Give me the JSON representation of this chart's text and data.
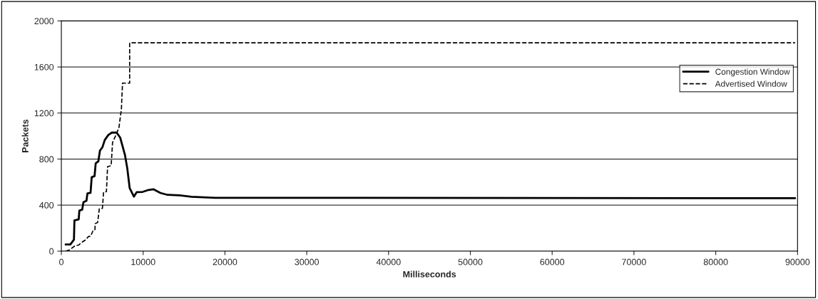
{
  "chart_data": {
    "type": "line",
    "xlabel": "Milliseconds",
    "ylabel": "Packets",
    "xlim": [
      0,
      90000
    ],
    "xticks": [
      0,
      10000,
      20000,
      30000,
      40000,
      50000,
      60000,
      70000,
      80000,
      90000
    ],
    "ylim": [
      0,
      2000
    ],
    "yticks": [
      0,
      400,
      800,
      1200,
      1600,
      2000
    ],
    "grid": "y",
    "legend": "right",
    "marker": "none",
    "series": [
      {
        "name": "Congestion Window",
        "color": "#000000",
        "line_style": "solid",
        "x": [
          520,
          1100,
          1540,
          1600,
          2120,
          2200,
          2550,
          2700,
          3070,
          3190,
          3570,
          3710,
          4060,
          4200,
          4520,
          4720,
          5020,
          5310,
          5740,
          6170,
          6760,
          7190,
          7770,
          8060,
          8350,
          8870,
          9220,
          9940,
          10670,
          11250,
          12100,
          12990,
          14440,
          15890,
          17340,
          18790,
          89700
        ],
        "values": [
          58,
          58,
          100,
          267,
          276,
          352,
          361,
          425,
          438,
          502,
          506,
          643,
          652,
          763,
          780,
          874,
          902,
          966,
          1009,
          1030,
          1030,
          987,
          838,
          720,
          549,
          474,
          513,
          515,
          532,
          538,
          506,
          489,
          485,
          472,
          468,
          464,
          460
        ]
      },
      {
        "name": "Advertised Window",
        "color": "#000000",
        "line_style": "dashed",
        "x": [
          520,
          950,
          1680,
          2120,
          2550,
          3000,
          3290,
          3570,
          3860,
          4100,
          4140,
          4440,
          4640,
          5020,
          5160,
          5510,
          5650,
          6090,
          6260,
          6610,
          7040,
          7340,
          7480,
          8350,
          8350,
          89700
        ],
        "values": [
          0,
          10,
          47,
          53,
          79,
          100,
          126,
          130,
          175,
          182,
          239,
          250,
          368,
          372,
          513,
          517,
          735,
          742,
          945,
          998,
          1073,
          1233,
          1460,
          1460,
          1810,
          1810
        ]
      }
    ]
  }
}
